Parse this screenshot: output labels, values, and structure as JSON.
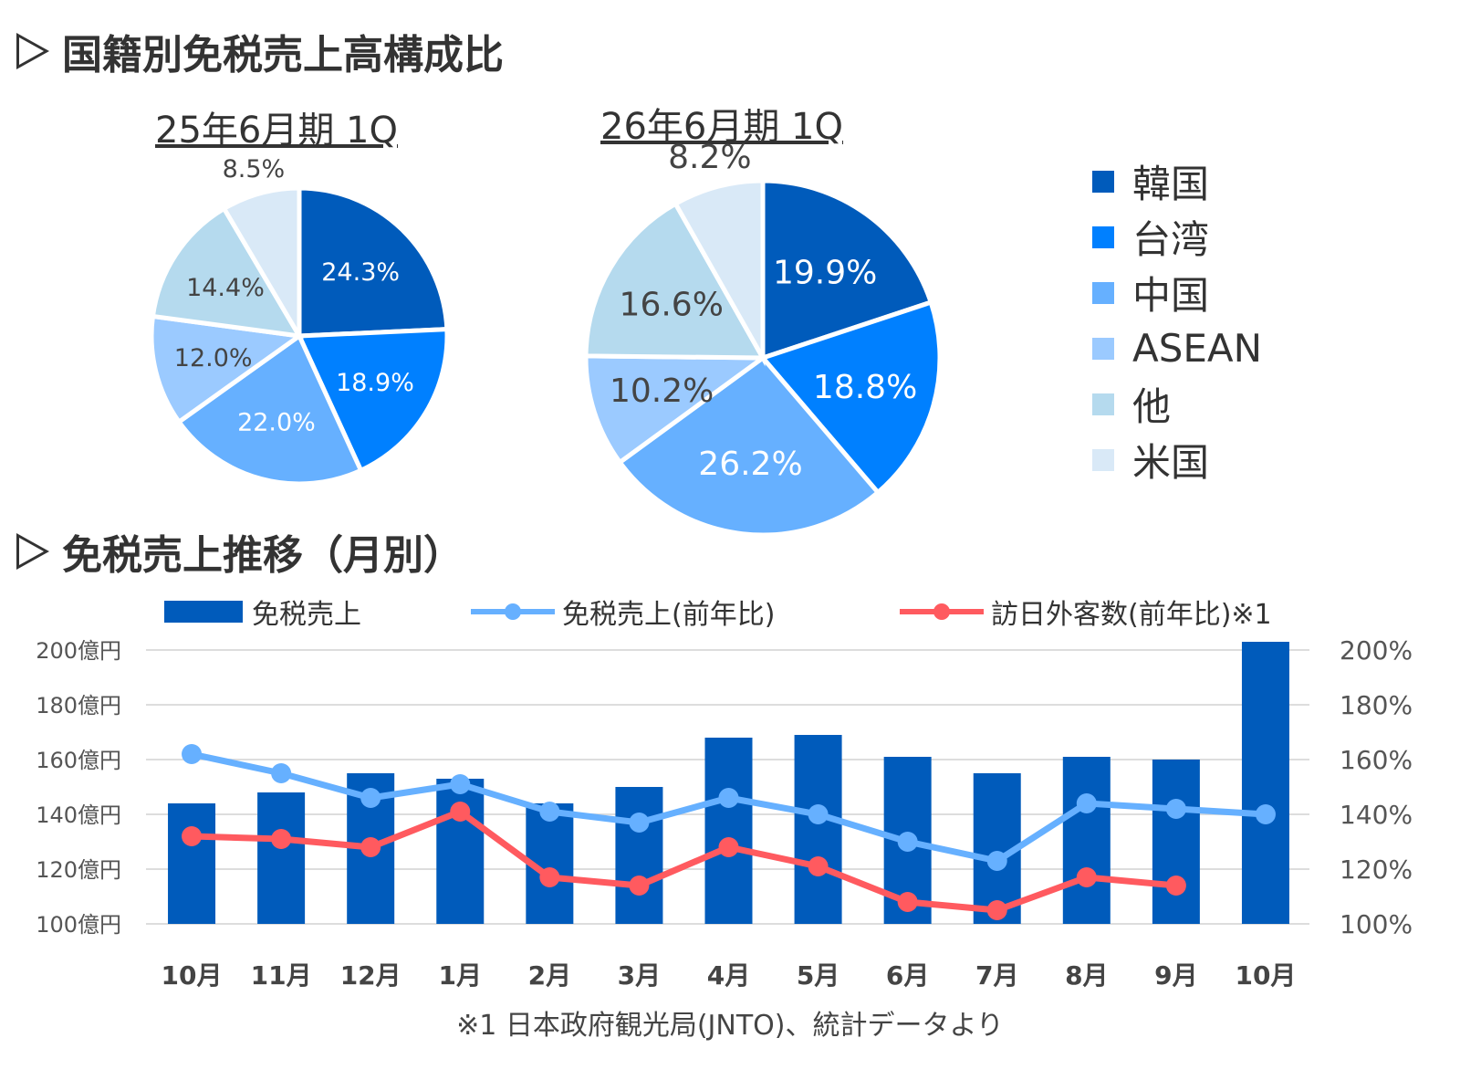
{
  "section1_title": "国籍別免税売上高構成比",
  "section2_title": "免税売上推移（月別）",
  "legend_pie": [
    {
      "label": "韓国",
      "color": "#005bbb"
    },
    {
      "label": "台湾",
      "color": "#0080ff"
    },
    {
      "label": "中国",
      "color": "#66b0ff"
    },
    {
      "label": "ASEAN",
      "color": "#9bcaff"
    },
    {
      "label": "他",
      "color": "#b5daee"
    },
    {
      "label": "米国",
      "color": "#d9e9f7"
    }
  ],
  "chart_data": [
    {
      "type": "pie",
      "title": "25年6月期 1Q",
      "categories": [
        "韓国",
        "台湾",
        "中国",
        "ASEAN",
        "他",
        "米国"
      ],
      "values": [
        24.3,
        18.9,
        22.0,
        12.0,
        14.4,
        8.5
      ],
      "labels": [
        "24.3%",
        "18.9%",
        "22.0%",
        "12.0%",
        "14.4%",
        "8.5%"
      ]
    },
    {
      "type": "pie",
      "title": "26年6月期 1Q",
      "categories": [
        "韓国",
        "台湾",
        "中国",
        "ASEAN",
        "他",
        "米国"
      ],
      "values": [
        19.9,
        18.8,
        26.2,
        10.2,
        16.6,
        8.2
      ],
      "labels": [
        "19.9%",
        "18.8%",
        "26.2%",
        "10.2%",
        "16.6%",
        "8.2%"
      ]
    },
    {
      "type": "bar+line",
      "categories": [
        "10月",
        "11月",
        "12月",
        "1月",
        "2月",
        "3月",
        "4月",
        "5月",
        "6月",
        "7月",
        "8月",
        "9月",
        "10月"
      ],
      "y_left": {
        "ticks": [
          "100億円",
          "120億円",
          "140億円",
          "160億円",
          "180億円",
          "200億円"
        ],
        "range": [
          100,
          200
        ]
      },
      "y_right": {
        "ticks": [
          "100%",
          "120%",
          "140%",
          "160%",
          "180%",
          "200%"
        ],
        "range": [
          100,
          200
        ]
      },
      "grid": true,
      "legend_placement": "top",
      "series": [
        {
          "name": "免税売上",
          "type": "bar",
          "axis": "left",
          "color": "#005bbb",
          "values": [
            144,
            148,
            155,
            153,
            144,
            150,
            168,
            169,
            161,
            155,
            161,
            160,
            203
          ]
        },
        {
          "name": "免税売上(前年比)",
          "type": "line",
          "axis": "right",
          "color": "#66b0ff",
          "values": [
            162,
            155,
            146,
            151,
            141,
            137,
            146,
            140,
            130,
            123,
            144,
            142,
            140
          ]
        },
        {
          "name": "訪日外客数(前年比)※1",
          "type": "line",
          "axis": "right",
          "color": "#ff5a5f",
          "values": [
            132,
            131,
            128,
            141,
            117,
            114,
            128,
            121,
            108,
            105,
            117,
            114,
            null
          ]
        }
      ]
    }
  ],
  "footnote": "※1 日本政府観光局(JNTO)、統計データより"
}
